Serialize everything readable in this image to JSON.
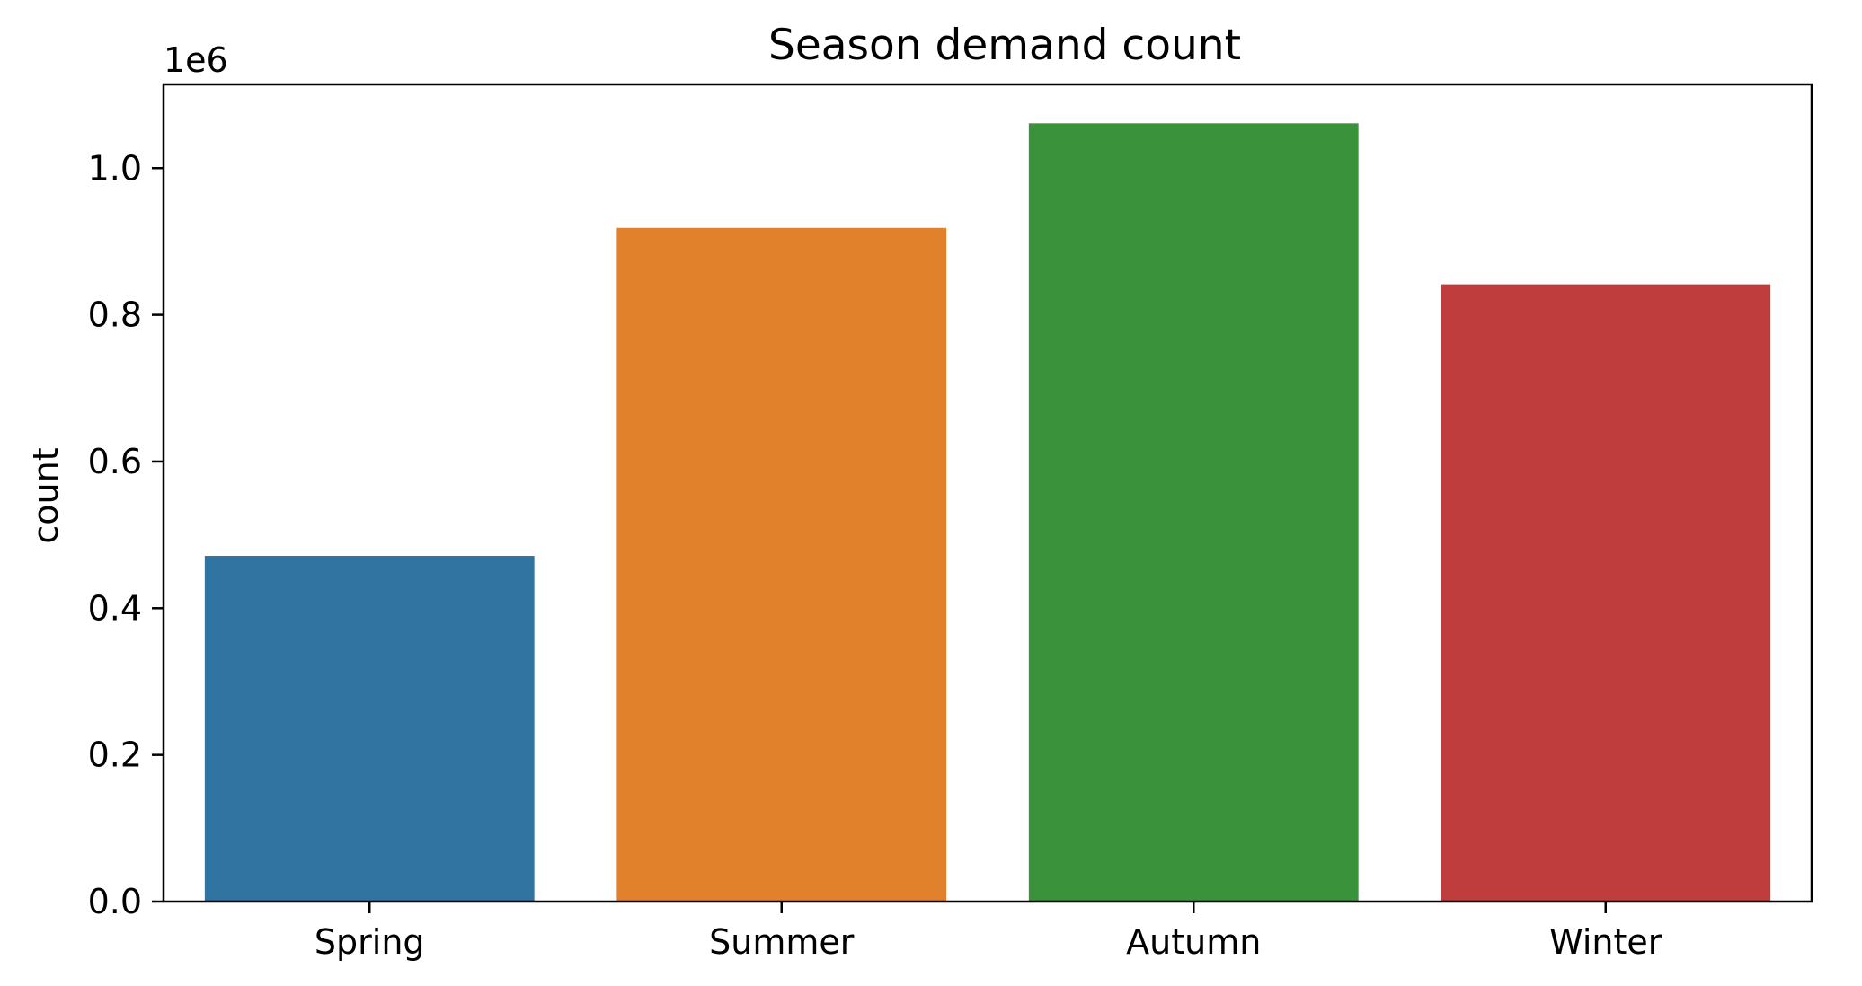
{
  "chart_data": {
    "type": "bar",
    "title": "Season demand count",
    "xlabel": "",
    "ylabel": "count",
    "y_scale_label": "1e6",
    "categories": [
      "Spring",
      "Summer",
      "Autumn",
      "Winter"
    ],
    "values": [
      471348,
      918589,
      1061129,
      841613
    ],
    "colors": [
      "#3274a1",
      "#e1812c",
      "#3a923a",
      "#c03d3e"
    ],
    "ylim": [
      0,
      1114185
    ],
    "y_ticks": [
      0,
      200000,
      400000,
      600000,
      800000,
      1000000
    ],
    "y_tick_labels": [
      "0.0",
      "0.2",
      "0.4",
      "0.6",
      "0.8",
      "1.0"
    ],
    "grid": false,
    "legend": "none"
  }
}
